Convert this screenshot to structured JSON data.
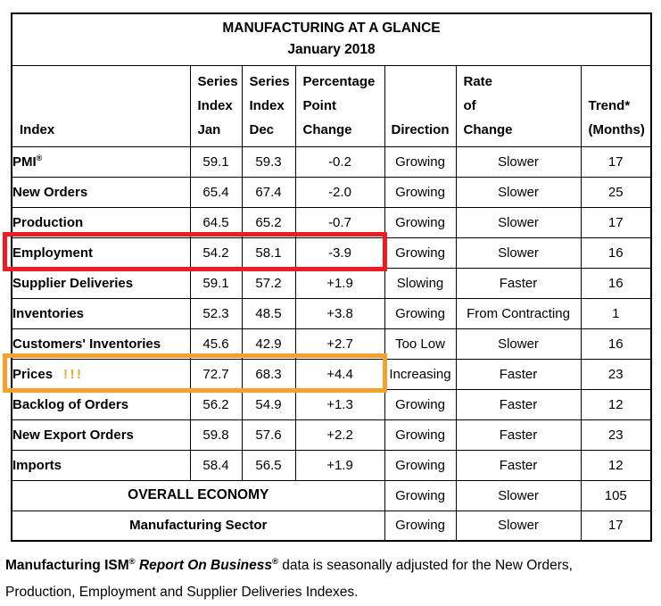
{
  "title": "MANUFACTURING AT A GLANCE",
  "subtitle": "January 2018",
  "columns": [
    {
      "label": "Index"
    },
    {
      "label": "Series\nIndex\nJan"
    },
    {
      "label": "Series\nIndex\nDec"
    },
    {
      "label": "Percentage\nPoint\nChange"
    },
    {
      "label": "Direction"
    },
    {
      "label": "Rate\nof\nChange"
    },
    {
      "label": "Trend*\n(Months)"
    }
  ],
  "rows": [
    {
      "name": "PMI",
      "sup": "®",
      "jan": "59.1",
      "dec": "59.3",
      "change": "-0.2",
      "direction": "Growing",
      "rate": "Slower",
      "trend": "17"
    },
    {
      "name": "New Orders",
      "jan": "65.4",
      "dec": "67.4",
      "change": "-2.0",
      "direction": "Growing",
      "rate": "Slower",
      "trend": "25"
    },
    {
      "name": "Production",
      "jan": "64.5",
      "dec": "65.2",
      "change": "-0.7",
      "direction": "Growing",
      "rate": "Slower",
      "trend": "17"
    },
    {
      "name": "Employment",
      "jan": "54.2",
      "dec": "58.1",
      "change": "-3.9",
      "direction": "Growing",
      "rate": "Slower",
      "trend": "16",
      "highlight": "red"
    },
    {
      "name": "Supplier Deliveries",
      "jan": "59.1",
      "dec": "57.2",
      "change": "+1.9",
      "direction": "Slowing",
      "rate": "Faster",
      "trend": "16"
    },
    {
      "name": "Inventories",
      "jan": "52.3",
      "dec": "48.5",
      "change": "+3.8",
      "direction": "Growing",
      "rate": "From Contracting",
      "trend": "1"
    },
    {
      "name": "Customers' Inventories",
      "jan": "45.6",
      "dec": "42.9",
      "change": "+2.7",
      "direction": "Too Low",
      "rate": "Slower",
      "trend": "16"
    },
    {
      "name": "Prices",
      "alert": "!!!",
      "jan": "72.7",
      "dec": "68.3",
      "change": "+4.4",
      "direction": "Increasing",
      "rate": "Faster",
      "trend": "23",
      "highlight": "orange"
    },
    {
      "name": "Backlog of Orders",
      "jan": "56.2",
      "dec": "54.9",
      "change": "+1.3",
      "direction": "Growing",
      "rate": "Faster",
      "trend": "12"
    },
    {
      "name": "New Export Orders",
      "jan": "59.8",
      "dec": "57.6",
      "change": "+2.2",
      "direction": "Growing",
      "rate": "Faster",
      "trend": "23"
    },
    {
      "name": "Imports",
      "jan": "58.4",
      "dec": "56.5",
      "change": "+1.9",
      "direction": "Growing",
      "rate": "Faster",
      "trend": "12"
    }
  ],
  "summary_rows": [
    {
      "label": "OVERALL ECONOMY",
      "direction": "Growing",
      "rate": "Slower",
      "trend": "105"
    },
    {
      "label": "Manufacturing Sector",
      "direction": "Growing",
      "rate": "Slower",
      "trend": "17"
    }
  ],
  "footnote": {
    "lead_bold": "Manufacturing ISM",
    "lead_sup": "®",
    "title_bold_italic": "Report On Business",
    "title_sup": "®",
    "line1_rest": "data is seasonally adjusted for the New Orders,",
    "line2": "Production, Employment and Supplier Deliveries Indexes."
  },
  "colors": {
    "highlight-red": "#ED1B24",
    "highlight-orange": "#F5A12B"
  }
}
